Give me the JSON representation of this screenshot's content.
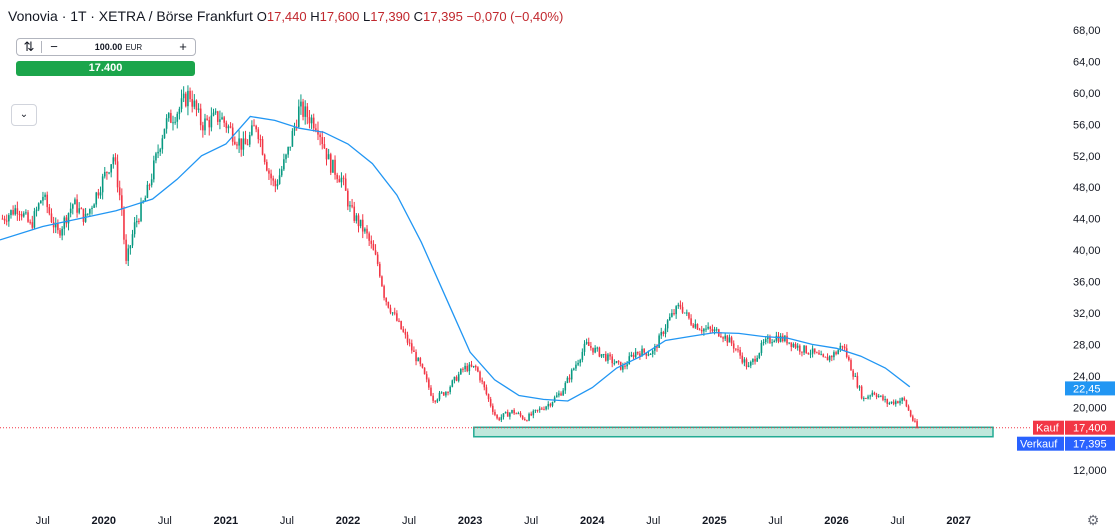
{
  "legend": {
    "title": "Vonovia · 1T · XETRA / Börse Frankfurt",
    "o_label": "O",
    "o_value": "17,440",
    "h_label": "H",
    "h_value": "17,600",
    "l_label": "L",
    "l_value": "17,390",
    "c_label": "C",
    "c_value": "17,395",
    "change": "−0,070 (−0,40%)"
  },
  "order_panel": {
    "quantity": "100.00",
    "unit": "EUR",
    "price_bar": "17.400"
  },
  "colors": {
    "up": "#089981",
    "down": "#f23645",
    "ma_line": "#2196f3",
    "zone_fill": "#bfe8dc",
    "zone_border": "#22ab94",
    "kauf": "#f23645",
    "verkauf": "#2962ff"
  },
  "icons": {
    "reset": "reset-icon",
    "collapse": "chevron-down-icon",
    "settings": "settings-icon"
  },
  "chart_data": {
    "type": "candlestick",
    "y_ticks": [
      "68,00",
      "64,00",
      "60,00",
      "56,00",
      "52,00",
      "48,00",
      "44,00",
      "40,00",
      "36,00",
      "32,00",
      "28,00",
      "24,00",
      "20,000",
      "12,000"
    ],
    "y_tick_values": [
      68,
      64,
      60,
      56,
      52,
      48,
      44,
      40,
      36,
      32,
      28,
      24,
      20,
      12
    ],
    "ylim": [
      8.2,
      70.8
    ],
    "x_ticks": [
      "Jul",
      "2020",
      "Jul",
      "2021",
      "Jul",
      "2022",
      "Jul",
      "2023",
      "Jul",
      "2024",
      "Jul",
      "2025",
      "Jul",
      "2026",
      "Jul",
      "2027"
    ],
    "x_tick_dates": [
      2019.5,
      2020.0,
      2020.5,
      2021.0,
      2021.5,
      2022.0,
      2022.5,
      2023.0,
      2023.5,
      2024.0,
      2024.5,
      2025.0,
      2025.5,
      2026.0,
      2026.5,
      2027.0
    ],
    "xlim": [
      2019.15,
      2027.38
    ],
    "price_path": [
      [
        2019.17,
        44
      ],
      [
        2019.3,
        45.5
      ],
      [
        2019.4,
        43
      ],
      [
        2019.5,
        47
      ],
      [
        2019.62,
        42
      ],
      [
        2019.75,
        46
      ],
      [
        2019.85,
        44
      ],
      [
        2019.95,
        47.5
      ],
      [
        2020.08,
        52
      ],
      [
        2020.15,
        45
      ],
      [
        2020.18,
        38
      ],
      [
        2020.25,
        43
      ],
      [
        2020.35,
        47
      ],
      [
        2020.5,
        56
      ],
      [
        2020.62,
        58
      ],
      [
        2020.7,
        60
      ],
      [
        2020.8,
        56
      ],
      [
        2020.95,
        57
      ],
      [
        2021.05,
        55
      ],
      [
        2021.15,
        53
      ],
      [
        2021.25,
        56
      ],
      [
        2021.35,
        50
      ],
      [
        2021.4,
        48
      ],
      [
        2021.5,
        52
      ],
      [
        2021.6,
        58
      ],
      [
        2021.75,
        56
      ],
      [
        2021.85,
        51
      ],
      [
        2021.95,
        49
      ],
      [
        2022.02,
        45
      ],
      [
        2022.15,
        42
      ],
      [
        2022.25,
        38
      ],
      [
        2022.3,
        34
      ],
      [
        2022.4,
        31
      ],
      [
        2022.5,
        28
      ],
      [
        2022.6,
        25
      ],
      [
        2022.7,
        21
      ],
      [
        2022.8,
        22
      ],
      [
        2022.95,
        25
      ],
      [
        2023.05,
        25
      ],
      [
        2023.15,
        21
      ],
      [
        2023.22,
        18.5
      ],
      [
        2023.35,
        19.5
      ],
      [
        2023.45,
        18.5
      ],
      [
        2023.55,
        19.5
      ],
      [
        2023.65,
        20.5
      ],
      [
        2023.75,
        22
      ],
      [
        2023.85,
        25
      ],
      [
        2023.95,
        28
      ],
      [
        2024.05,
        27
      ],
      [
        2024.15,
        26
      ],
      [
        2024.25,
        25
      ],
      [
        2024.35,
        27
      ],
      [
        2024.5,
        27
      ],
      [
        2024.62,
        31
      ],
      [
        2024.72,
        33
      ],
      [
        2024.8,
        31
      ],
      [
        2024.9,
        30
      ],
      [
        2025.05,
        29.5
      ],
      [
        2025.15,
        28
      ],
      [
        2025.28,
        25
      ],
      [
        2025.4,
        28
      ],
      [
        2025.5,
        29
      ],
      [
        2025.6,
        28.5
      ],
      [
        2025.7,
        27.5
      ],
      [
        2025.8,
        27
      ],
      [
        2025.9,
        26
      ],
      [
        2026.0,
        27
      ],
      [
        2026.05,
        28
      ],
      [
        2026.12,
        25
      ],
      [
        2026.22,
        21
      ],
      [
        2026.3,
        22
      ],
      [
        2026.42,
        20.5
      ],
      [
        2026.55,
        21
      ],
      [
        2026.62,
        18.5
      ],
      [
        2026.66,
        17.4
      ]
    ],
    "ma_series": {
      "values": [
        [
          2019.15,
          41.3
        ],
        [
          2019.5,
          43
        ],
        [
          2019.8,
          44
        ],
        [
          2020.1,
          45
        ],
        [
          2020.4,
          46.5
        ],
        [
          2020.6,
          49
        ],
        [
          2020.8,
          52
        ],
        [
          2021.0,
          53.5
        ],
        [
          2021.2,
          57
        ],
        [
          2021.4,
          56.5
        ],
        [
          2021.6,
          55.5
        ],
        [
          2021.8,
          55
        ],
        [
          2022.0,
          53.5
        ],
        [
          2022.2,
          51
        ],
        [
          2022.4,
          47
        ],
        [
          2022.6,
          41
        ],
        [
          2022.8,
          34
        ],
        [
          2023.0,
          27
        ],
        [
          2023.2,
          23.5
        ],
        [
          2023.4,
          21.5
        ],
        [
          2023.6,
          21
        ],
        [
          2023.8,
          20.8
        ],
        [
          2024.0,
          22.5
        ],
        [
          2024.2,
          25
        ],
        [
          2024.4,
          26.5
        ],
        [
          2024.6,
          28.5
        ],
        [
          2024.8,
          29
        ],
        [
          2025.0,
          29.5
        ],
        [
          2025.2,
          29.4
        ],
        [
          2025.4,
          29
        ],
        [
          2025.6,
          28.8
        ],
        [
          2025.8,
          28
        ],
        [
          2026.0,
          27.5
        ],
        [
          2026.2,
          26.5
        ],
        [
          2026.4,
          25
        ],
        [
          2026.6,
          22.6
        ]
      ],
      "last_label": "22,45"
    },
    "support_zone": {
      "x_start": 2023.03,
      "x_end": 2027.38,
      "y_low": 16.25,
      "y_high": 17.45
    },
    "current_price": 17.4,
    "kauf": {
      "label": "Kauf",
      "value": "17,400"
    },
    "verkauf": {
      "label": "Verkauf",
      "value": "17,395"
    }
  }
}
